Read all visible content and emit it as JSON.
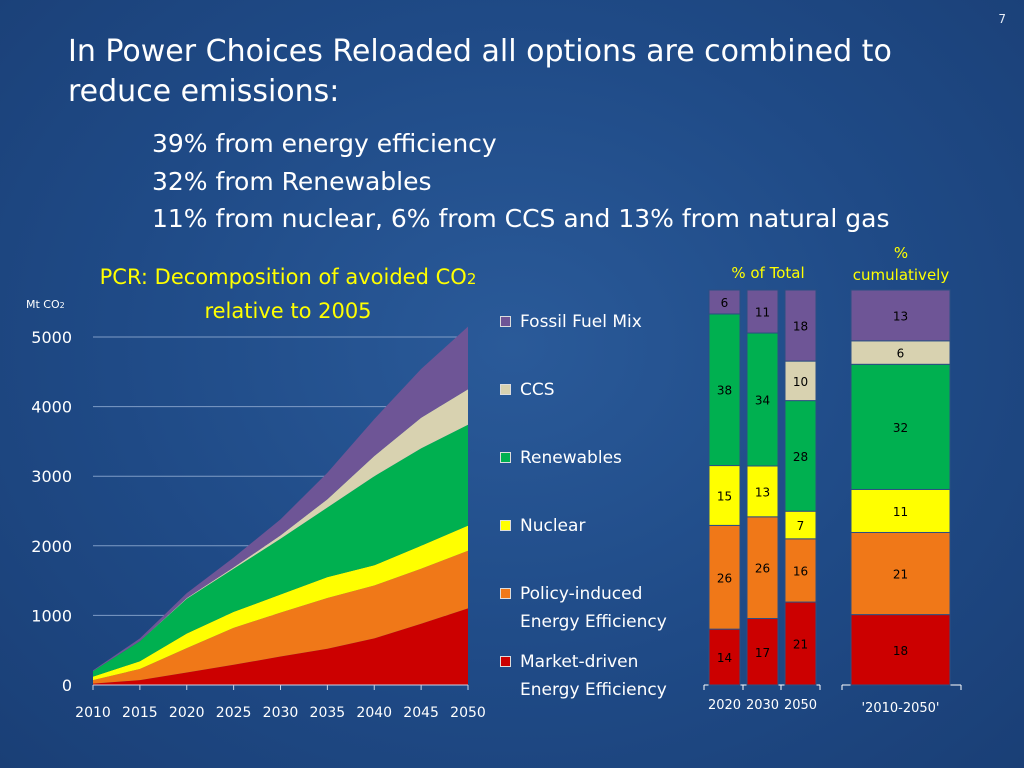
{
  "slide": {
    "page_number": "7",
    "title": "In Power Choices Reloaded all options are combined to reduce emissions:",
    "subtitle_lines": [
      "39% from energy efficiency",
      "32% from Renewables",
      "11% from nuclear, 6% from CCS and 13% from natural gas"
    ]
  },
  "chart_data": [
    {
      "type": "area",
      "title_main": "PCR: Decomposition of avoided CO",
      "title_subscript": "2",
      "title_line2": "relative to 2005",
      "ylabel_main": "Mt CO",
      "ylabel_subscript": "2",
      "stacked": true,
      "x": [
        2010,
        2015,
        2020,
        2025,
        2030,
        2035,
        2040,
        2045,
        2050
      ],
      "x_tick_labels": [
        "2010",
        "2015",
        "2020",
        "2025",
        "2030",
        "2035",
        "2040",
        "2045",
        "2050"
      ],
      "ylim": [
        0,
        5000
      ],
      "y_ticks": [
        0,
        1000,
        2000,
        3000,
        4000,
        5000
      ],
      "y_tick_labels": [
        "0",
        "1000",
        "2000",
        "3000",
        "4000",
        "5000"
      ],
      "grid": "horizontal",
      "legend_position": "right",
      "series": [
        {
          "name": "Market-driven Energy Efficiency",
          "color": "#cc0000",
          "values": [
            20,
            70,
            180,
            290,
            410,
            520,
            670,
            880,
            1100
          ]
        },
        {
          "name": "Policy-induced Energy Efficiency",
          "color": "#f07818",
          "values": [
            50,
            160,
            350,
            530,
            630,
            730,
            760,
            790,
            830
          ]
        },
        {
          "name": "Nuclear",
          "color": "#ffff00",
          "values": [
            50,
            110,
            210,
            230,
            260,
            300,
            290,
            330,
            360
          ]
        },
        {
          "name": "Renewables",
          "color": "#00b050",
          "values": [
            80,
            290,
            500,
            620,
            800,
            1000,
            1280,
            1400,
            1450
          ]
        },
        {
          "name": "CCS",
          "color": "#d8d2b0",
          "values": [
            0,
            0,
            10,
            20,
            50,
            120,
            290,
            440,
            510
          ]
        },
        {
          "name": "Fossil Fuel Mix",
          "color": "#6e5596",
          "values": [
            10,
            40,
            70,
            140,
            230,
            380,
            530,
            700,
            900
          ]
        }
      ],
      "legend_order": [
        "Fossil Fuel Mix",
        "CCS",
        "Renewables",
        "Nuclear",
        "Policy-induced Energy Efficiency",
        "Market-driven Energy Efficiency"
      ],
      "legend_lines": [
        [
          "Fossil Fuel Mix"
        ],
        [
          "CCS"
        ],
        [
          "Renewables"
        ],
        [
          "Nuclear"
        ],
        [
          "Policy-induced",
          "Energy Efficiency"
        ],
        [
          "Market-driven",
          "Energy Efficiency"
        ]
      ]
    },
    {
      "type": "bar",
      "stacked": true,
      "percent": true,
      "header_label": "% of Total",
      "categories": [
        "2020",
        "2030",
        "2050"
      ],
      "series": [
        {
          "name": "Market-driven Energy Efficiency",
          "color": "#cc0000",
          "values": [
            14,
            17,
            21
          ]
        },
        {
          "name": "Policy-induced Energy Efficiency",
          "color": "#f07818",
          "values": [
            26,
            26,
            16
          ]
        },
        {
          "name": "Nuclear",
          "color": "#ffff00",
          "values": [
            15,
            13,
            7
          ]
        },
        {
          "name": "Renewables",
          "color": "#00b050",
          "values": [
            38,
            34,
            28
          ]
        },
        {
          "name": "CCS",
          "color": "#d8d2b0",
          "values": [
            null,
            null,
            10
          ]
        },
        {
          "name": "Fossil Fuel Mix",
          "color": "#6e5596",
          "values": [
            6,
            11,
            18
          ]
        }
      ]
    },
    {
      "type": "bar",
      "stacked": true,
      "percent": true,
      "header_label": "% cumulatively",
      "categories": [
        "'2010-2050'"
      ],
      "series": [
        {
          "name": "Market-driven Energy Efficiency",
          "color": "#cc0000",
          "values": [
            18
          ]
        },
        {
          "name": "Policy-induced Energy Efficiency",
          "color": "#f07818",
          "values": [
            21
          ]
        },
        {
          "name": "Nuclear",
          "color": "#ffff00",
          "values": [
            11
          ]
        },
        {
          "name": "Renewables",
          "color": "#00b050",
          "values": [
            32
          ]
        },
        {
          "name": "CCS",
          "color": "#d8d2b0",
          "values": [
            6
          ]
        },
        {
          "name": "Fossil Fuel Mix",
          "color": "#6e5596",
          "values": [
            13
          ]
        }
      ]
    }
  ]
}
